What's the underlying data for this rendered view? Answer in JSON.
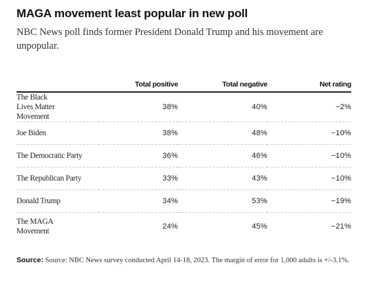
{
  "title": "MAGA movement least popular in new poll",
  "subtitle": "NBC News poll finds former President Donald Trump and his movement are unpopular.",
  "chart_data": {
    "type": "table",
    "columns": [
      "",
      "Total positive",
      "Total negative",
      "Net rating"
    ],
    "rows": [
      {
        "label": "The Black Lives Matter Movement",
        "positive": "38%",
        "negative": "40%",
        "net": "−2%"
      },
      {
        "label": "Joe Biden",
        "positive": "38%",
        "negative": "48%",
        "net": "−10%"
      },
      {
        "label": "The Democratic Party",
        "positive": "36%",
        "negative": "46%",
        "net": "−10%"
      },
      {
        "label": "The Republican Party",
        "positive": "33%",
        "negative": "43%",
        "net": "−10%"
      },
      {
        "label": "Donald Trump",
        "positive": "34%",
        "negative": "53%",
        "net": "−19%"
      },
      {
        "label": "The MAGA Movement",
        "positive": "24%",
        "negative": "45%",
        "net": "−21%"
      }
    ]
  },
  "source": {
    "label": "Source:",
    "text": "Source: NBC News survey conducted April 14-18, 2023. The margin of error for 1,000 adults is +/-3.1%."
  }
}
